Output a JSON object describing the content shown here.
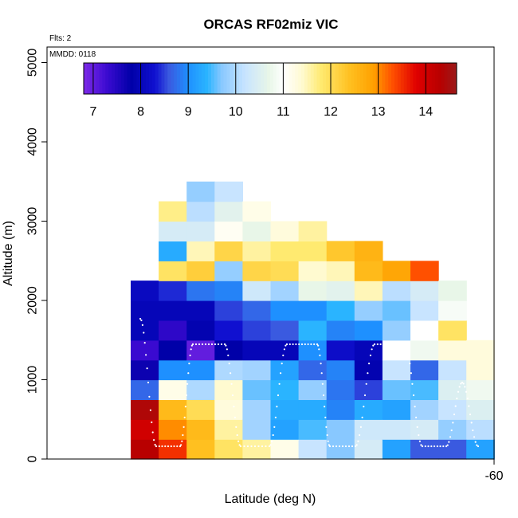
{
  "chart_data": {
    "type": "heatmap",
    "title": "ORCAS RF02miz VIC",
    "xlabel": "Latitude (deg N)",
    "ylabel": "Altitude (m)",
    "annotations": [
      "Flts: 2",
      "MMDD: 0118"
    ],
    "x_tick_labels": [
      "-60"
    ],
    "y_ticks": [
      0,
      1000,
      2000,
      3000,
      4000,
      5000
    ],
    "ylim": [
      0,
      5200
    ],
    "colorbar": {
      "ticks": [
        7,
        8,
        9,
        10,
        11,
        12,
        13,
        14
      ],
      "range": [
        6.8,
        14.65
      ]
    },
    "grid": {
      "columns": 13,
      "row_height_m": 250,
      "note": "column-major, values from bottom row upward; null = no data"
    },
    "columns": [
      [
        14.3,
        14.0,
        14.4,
        8.7,
        7.7,
        7.3,
        8.0,
        8.0,
        8.1,
        null,
        null,
        null,
        null,
        null,
        null,
        null
      ],
      [
        13.5,
        13.0,
        12.5,
        11.2,
        9.0,
        7.8,
        7.4,
        8.0,
        8.4,
        11.9,
        9.3,
        10.4,
        11.7,
        null,
        null,
        null
      ],
      [
        12.4,
        12.5,
        12.0,
        10.0,
        9.0,
        7.0,
        7.9,
        8.0,
        8.8,
        12.2,
        11.5,
        10.4,
        10.1,
        9.8,
        null,
        null
      ],
      [
        11.9,
        11.6,
        11.3,
        11.4,
        10.0,
        7.8,
        8.3,
        8.5,
        8.9,
        9.8,
        12.1,
        11.1,
        10.6,
        10.2,
        null,
        null
      ],
      [
        11.6,
        9.9,
        9.9,
        9.6,
        9.9,
        8.0,
        8.5,
        8.7,
        10.3,
        12.1,
        11.6,
        10.7,
        11.2,
        null,
        null,
        null
      ],
      [
        11.2,
        9.2,
        9.3,
        9.4,
        9.2,
        8.0,
        8.6,
        9.0,
        9.9,
        12.0,
        11.8,
        11.3,
        null,
        null,
        null,
        null
      ],
      [
        10.2,
        9.5,
        9.3,
        9.8,
        8.7,
        9.0,
        9.4,
        9.0,
        10.7,
        11.4,
        11.8,
        11.6,
        null,
        null,
        null,
        null
      ],
      [
        9.7,
        9.7,
        8.9,
        8.8,
        8.9,
        8.2,
        8.9,
        9.4,
        10.6,
        11.5,
        12.3,
        null,
        null,
        null,
        null,
        null
      ],
      [
        10.4,
        10.3,
        9.3,
        8.5,
        7.9,
        8.0,
        9.0,
        9.8,
        11.5,
        12.5,
        12.6,
        null,
        null,
        null,
        null,
        null
      ],
      [
        9.2,
        10.3,
        9.2,
        9.6,
        10.2,
        11.0,
        9.8,
        9.6,
        10.1,
        12.8,
        null,
        null,
        null,
        null,
        null,
        null
      ],
      [
        8.6,
        10.4,
        9.9,
        9.5,
        8.7,
        10.8,
        11.0,
        10.2,
        10.4,
        13.3,
        null,
        null,
        null,
        null,
        null,
        null
      ],
      [
        8.6,
        9.8,
        10.2,
        10.5,
        10.2,
        11.3,
        11.9,
        10.9,
        10.7,
        null,
        null,
        null,
        null,
        null,
        null,
        null
      ],
      [
        9.2,
        10.1,
        10.5,
        10.8,
        11.3,
        11.3,
        null,
        null,
        null,
        null,
        null,
        null,
        null,
        null,
        null,
        null
      ]
    ],
    "flight_track_note": "dotted white altitude trace of ascending/descending profiles"
  }
}
